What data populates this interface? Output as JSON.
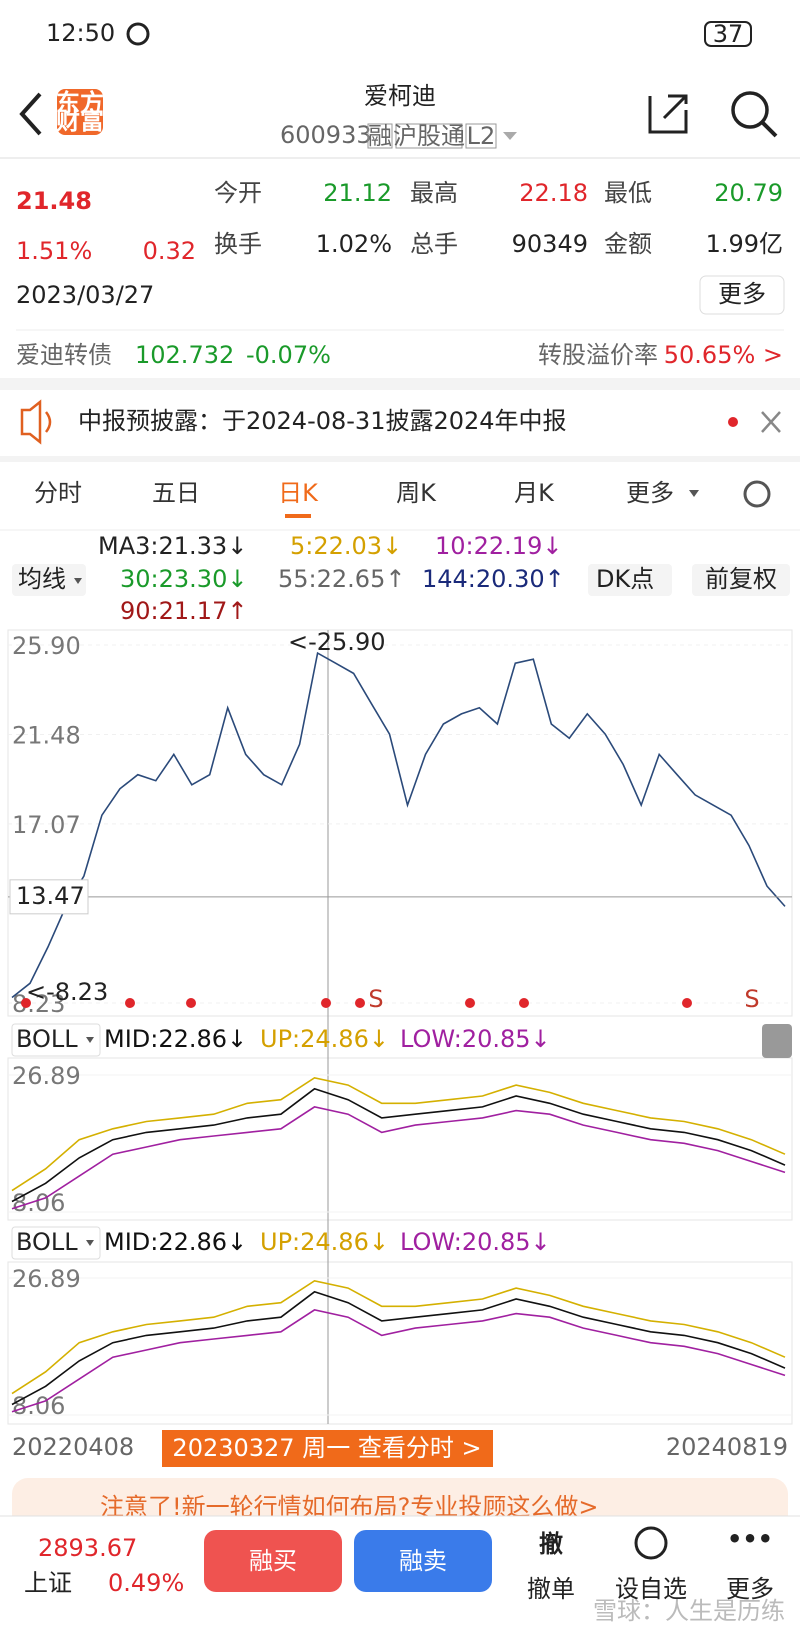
{
  "status_bar": {
    "time": "12:50",
    "battery": "37"
  },
  "header": {
    "logo": [
      "东方",
      "财富"
    ],
    "title": "爱柯迪",
    "code": "600933",
    "tags": [
      "融",
      "沪股通",
      "L2"
    ]
  },
  "quote": {
    "price": "21.48",
    "change_pct": "1.51%",
    "change": "0.32",
    "date": "2023/03/27",
    "stats": [
      {
        "label": "今开",
        "value": "21.12"
      },
      {
        "label": "最高",
        "value": "22.18"
      },
      {
        "label": "最低",
        "value": "20.79"
      },
      {
        "label": "换手",
        "value": "1.02%"
      },
      {
        "label": "总手",
        "value": "90349"
      },
      {
        "label": "金额",
        "value": "1.99亿"
      }
    ],
    "more": "更多"
  },
  "bond": {
    "name": "爱迪转债",
    "price": "102.732",
    "change": "-0.07%",
    "premium_label": "转股溢价率",
    "premium": "50.65% >"
  },
  "notice": {
    "text": "中报预披露：于2024-08-31披露2024年中报"
  },
  "tabs": [
    "分时",
    "五日",
    "日K",
    "周K",
    "月K",
    "更多"
  ],
  "ma": {
    "selector": "均线",
    "items": [
      "MA3:21.33↓",
      "5:22.03↓",
      "10:22.19↓",
      "30:23.30↓",
      "55:22.65↑",
      "144:20.30↑",
      "90:21.17↑"
    ],
    "dk": "DK点",
    "adjust": "前复权"
  },
  "chart_data": [
    {
      "type": "line",
      "color": "#2b4a7a",
      "values": [
        8.5,
        9.2,
        11,
        13,
        14.5,
        17.5,
        18.8,
        19.5,
        19.2,
        20.5,
        19,
        19.5,
        22.8,
        20.5,
        19.5,
        19,
        21,
        25.5,
        25,
        24.5,
        23,
        21.5,
        18,
        20.5,
        22,
        22.5,
        22.8,
        22,
        25,
        25.2,
        22,
        21.3,
        22.5,
        21.5,
        20,
        18,
        20.5,
        19.5,
        18.5,
        18,
        17.5,
        16,
        14,
        13
      ],
      "ylim": [
        8.23,
        25.9
      ],
      "yticks": [
        {
          "value": 25.9,
          "label": "25.90"
        },
        {
          "value": 21.48,
          "label": "21.48"
        },
        {
          "value": 17.07,
          "label": "17.07"
        },
        {
          "value": 8.23,
          "label": "8.23"
        }
      ],
      "max_label": "<-25.90",
      "min_label": "<-8.23",
      "crosshair": 13.47,
      "signals": [
        "S",
        "S"
      ]
    },
    {
      "type": "boll",
      "indicator": "BOLL",
      "ylim": [
        8.06,
        26.89
      ],
      "yticks": [
        26.89,
        8.06
      ],
      "series": [
        {
          "label": "MID:22.86↓",
          "color": "#111111",
          "values": [
            9.5,
            12,
            15.5,
            18,
            19,
            19.5,
            20,
            21,
            21.5,
            25,
            23.5,
            21,
            21.5,
            22,
            22.5,
            24,
            23,
            21.5,
            20.5,
            19.5,
            19,
            18,
            16.5,
            14.5
          ]
        },
        {
          "label": "UP:24.86↓",
          "color": "#d4b000",
          "values": [
            11,
            14,
            18,
            19.5,
            20.5,
            21,
            21.5,
            23,
            23.5,
            26.5,
            25.5,
            23,
            23,
            23.5,
            24,
            25.5,
            24.5,
            23,
            22,
            21,
            20.5,
            19.5,
            18,
            16
          ]
        },
        {
          "label": "LOW:20.85↓",
          "color": "#a020a0",
          "values": [
            8.5,
            10,
            13,
            16,
            17,
            18,
            18.5,
            19,
            19.5,
            22.5,
            21.5,
            19,
            20,
            20.5,
            21,
            22,
            21.5,
            20,
            19,
            18,
            17.5,
            16.5,
            15,
            13.5
          ]
        }
      ]
    },
    {
      "type": "boll",
      "indicator": "BOLL",
      "ylim": [
        8.06,
        26.89
      ],
      "yticks": [
        26.89,
        8.06
      ],
      "series": [
        {
          "label": "MID:22.86↓",
          "color": "#111111",
          "values": [
            9.5,
            12,
            15.5,
            18,
            19,
            19.5,
            20,
            21,
            21.5,
            25,
            23.5,
            21,
            21.5,
            22,
            22.5,
            24,
            23,
            21.5,
            20.5,
            19.5,
            19,
            18,
            16.5,
            14.5
          ]
        },
        {
          "label": "UP:24.86↓",
          "color": "#d4b000",
          "values": [
            11,
            14,
            18,
            19.5,
            20.5,
            21,
            21.5,
            23,
            23.5,
            26.5,
            25.5,
            23,
            23,
            23.5,
            24,
            25.5,
            24.5,
            23,
            22,
            21,
            20.5,
            19.5,
            18,
            16
          ]
        },
        {
          "label": "LOW:20.85↓",
          "color": "#a020a0",
          "values": [
            8.5,
            10,
            13,
            16,
            17,
            18,
            18.5,
            19,
            19.5,
            22.5,
            21.5,
            19,
            20,
            20.5,
            21,
            22,
            21.5,
            20,
            19,
            18,
            17.5,
            16.5,
            15,
            13.5
          ]
        }
      ]
    }
  ],
  "dates": {
    "start": "20220408",
    "cursor": "20230327 周一 查看分时 >",
    "end": "20240819"
  },
  "banner": "注意了!新一轮行情如何布局?专业投顾这么做>",
  "bottom": {
    "index_value": "2893.67",
    "index_name": "上证",
    "index_change": "0.49%",
    "buy": "融买",
    "sell": "融卖",
    "cancel_icon": "撤",
    "cancel": "撤单",
    "watch": "设自选",
    "more": "更多",
    "watermark": "雪球：人生是历练"
  }
}
